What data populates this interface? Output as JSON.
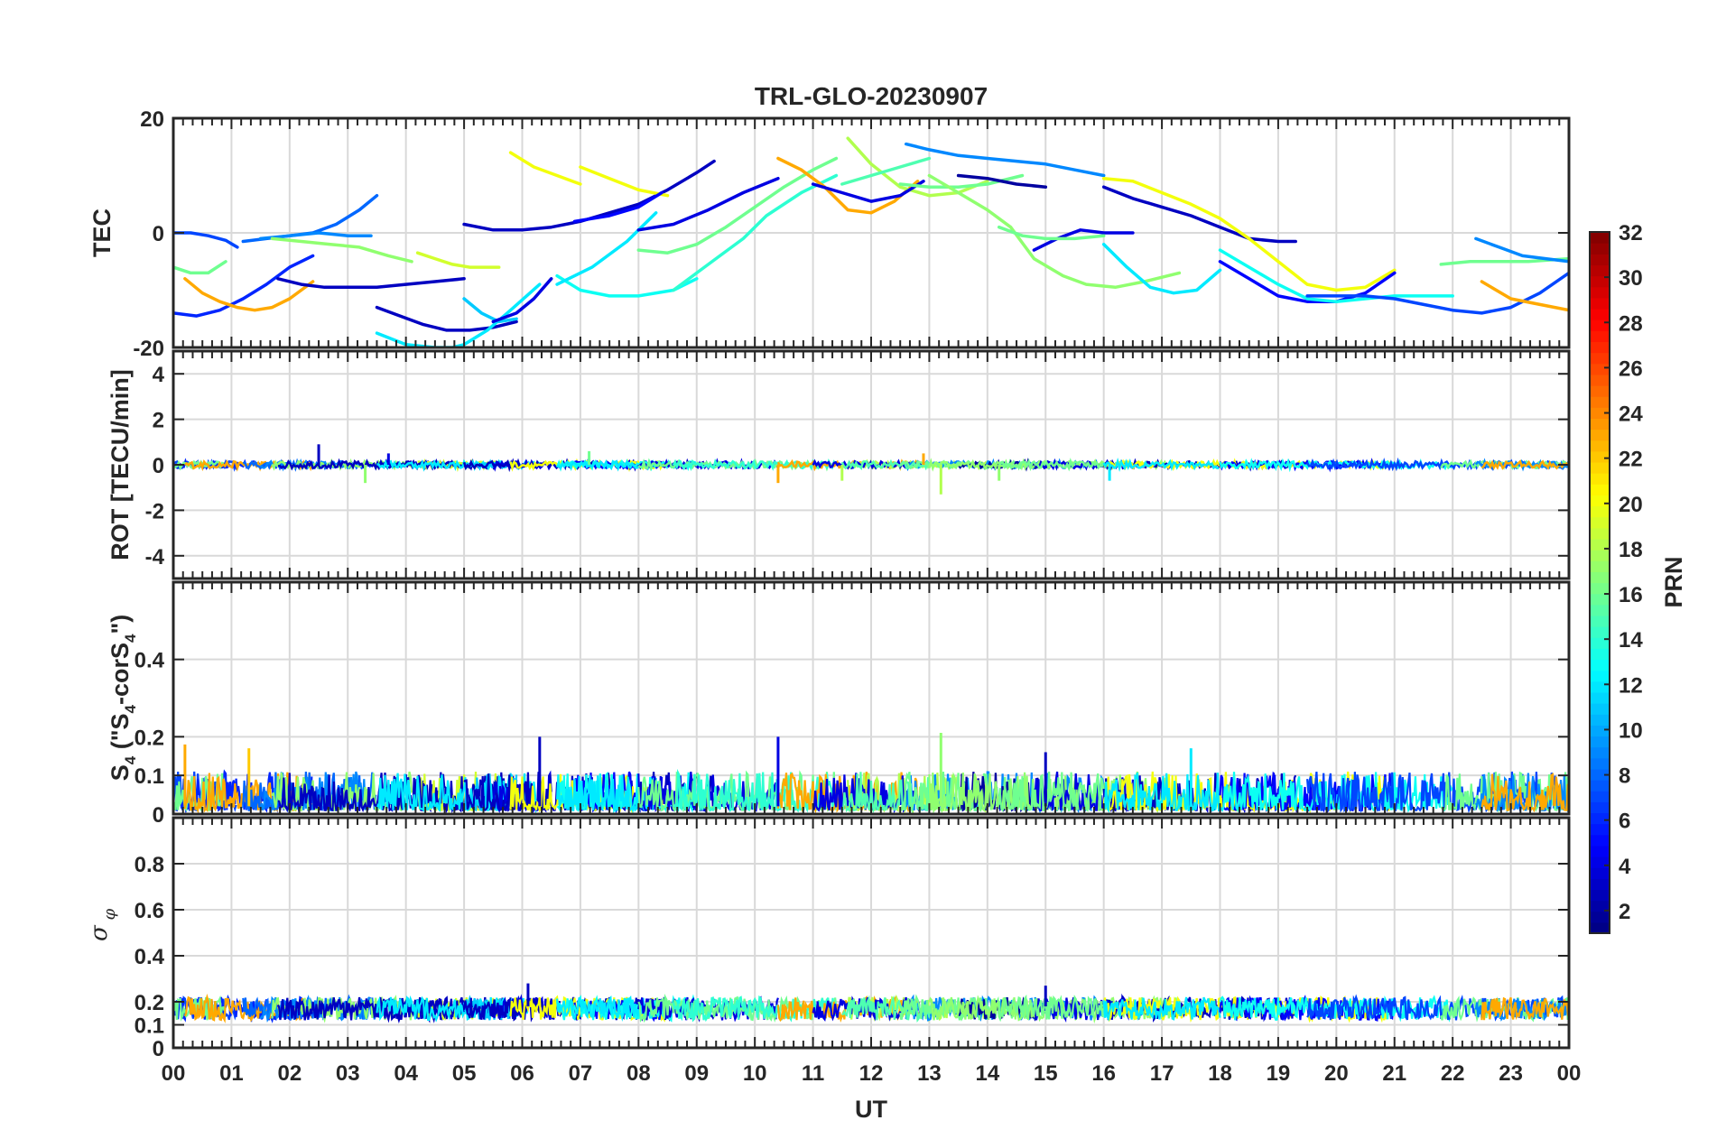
{
  "chart_data": [
    {
      "type": "line",
      "panel": "TEC",
      "title": "TRL-GLO-20230907",
      "ylabel": "TEC",
      "ylim": [
        -20,
        20
      ],
      "yticks": [
        20,
        0,
        -20
      ],
      "xlabel": "",
      "xlim": [
        0,
        24
      ],
      "grid": true,
      "color_by": "PRN",
      "series": [
        {
          "prn": 7,
          "x": [
            0.0,
            0.3,
            0.6,
            0.9,
            1.1
          ],
          "y": [
            0,
            0,
            -0.5,
            -1.3,
            -2.5
          ]
        },
        {
          "prn": 6,
          "x": [
            0.0,
            0.4,
            0.8,
            1.2,
            1.6,
            2.0,
            2.4
          ],
          "y": [
            -14,
            -14.5,
            -13.5,
            -11.5,
            -9,
            -6,
            -4
          ]
        },
        {
          "prn": 16,
          "x": [
            0.0,
            0.3,
            0.6,
            0.9
          ],
          "y": [
            -6,
            -7,
            -7,
            -5
          ]
        },
        {
          "prn": 23,
          "x": [
            0.2,
            0.5,
            0.8,
            1.1,
            1.4,
            1.7,
            2.0,
            2.4
          ],
          "y": [
            -8,
            -10.5,
            -12,
            -13,
            -13.5,
            -13,
            -11.5,
            -8.5
          ]
        },
        {
          "prn": 8,
          "x": [
            1.2,
            1.6,
            2.0,
            2.4,
            2.8,
            3.2,
            3.5
          ],
          "y": [
            -1.5,
            -1,
            -0.5,
            0,
            1.5,
            4,
            6.5
          ]
        },
        {
          "prn": 9,
          "x": [
            1.5,
            2.0,
            2.5,
            3.0,
            3.4
          ],
          "y": [
            -1,
            -0.5,
            0,
            -0.5,
            -0.5
          ]
        },
        {
          "prn": 17,
          "x": [
            1.7,
            2.2,
            2.7,
            3.2,
            3.7,
            4.1
          ],
          "y": [
            -1,
            -1.5,
            -2,
            -2.5,
            -4,
            -5
          ]
        },
        {
          "prn": 3,
          "x": [
            1.8,
            2.2,
            2.6,
            3.0,
            3.5,
            4.0,
            4.5,
            5.0
          ],
          "y": [
            -8,
            -9,
            -9.5,
            -9.5,
            -9.5,
            -9,
            -8.5,
            -8
          ]
        },
        {
          "prn": 19,
          "x": [
            4.2,
            4.5,
            4.8,
            5.1,
            5.6
          ],
          "y": [
            -3.5,
            -4.5,
            -5.5,
            -6,
            -6
          ]
        },
        {
          "prn": 3,
          "x": [
            3.5,
            3.9,
            4.3,
            4.7,
            5.1,
            5.5,
            5.9
          ],
          "y": [
            -13,
            -14.5,
            -16,
            -17,
            -17,
            -16.5,
            -15.5
          ]
        },
        {
          "prn": 12,
          "x": [
            3.5,
            4.0,
            4.5,
            4.8,
            5.0,
            5.4,
            5.8,
            6.3
          ],
          "y": [
            -17.5,
            -19.5,
            -20,
            -20,
            -19.5,
            -17,
            -13.5,
            -9
          ]
        },
        {
          "prn": 11,
          "x": [
            5.0,
            5.3,
            5.6,
            5.9
          ],
          "y": [
            -11.5,
            -14,
            -15.5,
            -15
          ]
        },
        {
          "prn": 4,
          "x": [
            5.5,
            5.9,
            6.2,
            6.5
          ],
          "y": [
            -15.5,
            -14,
            -11.5,
            -8
          ]
        },
        {
          "prn": 3,
          "x": [
            5.0,
            5.5,
            6.0,
            6.5,
            7.0,
            7.5,
            8.0,
            8.5,
            9.0,
            9.3
          ],
          "y": [
            1.5,
            0.5,
            0.5,
            1,
            2,
            3.5,
            5,
            7.5,
            10.5,
            12.5
          ]
        },
        {
          "prn": 20,
          "x": [
            5.8,
            6.2,
            6.6,
            7.0
          ],
          "y": [
            14,
            11.5,
            10,
            8.5
          ]
        },
        {
          "prn": 20,
          "x": [
            7.0,
            7.5,
            8.0,
            8.5
          ],
          "y": [
            11.5,
            9.5,
            7.5,
            6.5
          ]
        },
        {
          "prn": 5,
          "x": [
            6.9,
            7.5,
            8.0,
            8.4
          ],
          "y": [
            2,
            3,
            4.5,
            7
          ]
        },
        {
          "prn": 13,
          "x": [
            6.6,
            7.0,
            7.5,
            8.0,
            8.6,
            9.0
          ],
          "y": [
            -7.5,
            -10,
            -11,
            -11,
            -10,
            -8
          ]
        },
        {
          "prn": 12,
          "x": [
            6.6,
            7.2,
            7.8,
            8.3
          ],
          "y": [
            -9,
            -6,
            -1.5,
            3.5
          ]
        },
        {
          "prn": 4,
          "x": [
            8.0,
            8.6,
            9.2,
            9.8,
            10.4
          ],
          "y": [
            0.5,
            1.5,
            4,
            7,
            9.5
          ]
        },
        {
          "prn": 16,
          "x": [
            8.0,
            8.5,
            9.0,
            9.5,
            10.0,
            10.5,
            11.0,
            11.4
          ],
          "y": [
            -3,
            -3.5,
            -2,
            1,
            4.5,
            8,
            11,
            13
          ]
        },
        {
          "prn": 14,
          "x": [
            8.6,
            9.0,
            9.4,
            9.8,
            10.2,
            10.8,
            11.4
          ],
          "y": [
            -10,
            -7,
            -4,
            -1,
            3,
            7,
            10
          ]
        },
        {
          "prn": 23,
          "x": [
            10.4,
            10.8,
            11.2,
            11.6,
            12.0,
            12.4,
            12.8
          ],
          "y": [
            13,
            11,
            8,
            4,
            3.5,
            5.5,
            9
          ]
        },
        {
          "prn": 18,
          "x": [
            11.6,
            12.0,
            12.5,
            13.0,
            13.5,
            14.0
          ],
          "y": [
            16.5,
            12,
            8,
            6.5,
            7,
            9
          ]
        },
        {
          "prn": 4,
          "x": [
            11.0,
            11.5,
            12.0,
            12.5,
            12.9
          ],
          "y": [
            8.5,
            7,
            5.5,
            6.5,
            9
          ]
        },
        {
          "prn": 9,
          "x": [
            12.6,
            13.0,
            13.5,
            14.0,
            14.5,
            15.0,
            15.5,
            16.0
          ],
          "y": [
            15.5,
            14.5,
            13.5,
            13,
            12.5,
            12,
            11,
            10
          ]
        },
        {
          "prn": 15,
          "x": [
            11.5,
            12.0,
            12.5,
            13.0
          ],
          "y": [
            8.5,
            10,
            11.5,
            13
          ]
        },
        {
          "prn": 16,
          "x": [
            12.5,
            13.0,
            13.5,
            14.0,
            14.6
          ],
          "y": [
            8.5,
            8,
            8,
            8.5,
            10
          ]
        },
        {
          "prn": 2,
          "x": [
            13.5,
            14.0,
            14.5,
            15.0
          ],
          "y": [
            10,
            9.5,
            8.5,
            8
          ]
        },
        {
          "prn": 17,
          "x": [
            13.0,
            13.5,
            14.0,
            14.4,
            14.8,
            15.3,
            15.7,
            16.2,
            16.7,
            17.3
          ],
          "y": [
            10,
            7,
            4,
            1,
            -4.5,
            -7.5,
            -9,
            -9.5,
            -8.5,
            -7
          ]
        },
        {
          "prn": 4,
          "x": [
            14.8,
            15.2,
            15.6,
            16.0,
            16.5
          ],
          "y": [
            -3,
            -1,
            0.5,
            0,
            0
          ]
        },
        {
          "prn": 16,
          "x": [
            14.2,
            14.6,
            15.0,
            15.5,
            16.0
          ],
          "y": [
            1,
            -0.5,
            -1,
            -1,
            -0.5
          ]
        },
        {
          "prn": 3,
          "x": [
            16.0,
            16.5,
            17.0,
            17.5,
            18.0,
            18.5,
            19.0,
            19.3
          ],
          "y": [
            8,
            6,
            4.5,
            3,
            1,
            -1,
            -1.5,
            -1.5
          ]
        },
        {
          "prn": 20,
          "x": [
            16.0,
            16.5,
            17.0,
            17.5,
            18.0,
            18.5,
            19.0,
            19.5,
            20.0,
            20.5,
            21.0
          ],
          "y": [
            9.5,
            9,
            7,
            5,
            2.5,
            -1,
            -5,
            -9,
            -10,
            -9.5,
            -6.5
          ]
        },
        {
          "prn": 12,
          "x": [
            16.0,
            16.4,
            16.8,
            17.2,
            17.6,
            18.0
          ],
          "y": [
            -2,
            -6,
            -9.5,
            -10.5,
            -10,
            -6.5
          ]
        },
        {
          "prn": 5,
          "x": [
            18.0,
            18.5,
            19.0,
            19.5,
            20.0,
            20.5,
            21.0
          ],
          "y": [
            -5,
            -8,
            -11,
            -12,
            -12,
            -10.5,
            -7
          ]
        },
        {
          "prn": 13,
          "x": [
            18.0,
            18.5,
            19.0,
            19.5,
            20.0,
            20.5,
            21.0,
            21.5,
            22.0
          ],
          "y": [
            -3,
            -6,
            -9,
            -11.5,
            -12,
            -11.5,
            -11,
            -11,
            -11
          ]
        },
        {
          "prn": 7,
          "x": [
            19.5,
            20.0,
            20.5,
            21.0,
            21.5,
            22.0,
            22.5,
            23.0,
            23.5,
            24.0
          ],
          "y": [
            -11,
            -11,
            -11,
            -11.5,
            -12.5,
            -13.5,
            -14,
            -13,
            -10.5,
            -7
          ]
        },
        {
          "prn": 16,
          "x": [
            21.8,
            22.3,
            22.8,
            23.3,
            24.0
          ],
          "y": [
            -5.5,
            -5,
            -5,
            -5,
            -4.5
          ]
        },
        {
          "prn": 9,
          "x": [
            22.4,
            22.8,
            23.2,
            23.6,
            24.0
          ],
          "y": [
            -1,
            -2.5,
            -4,
            -4.5,
            -5
          ]
        },
        {
          "prn": 23,
          "x": [
            22.5,
            23.0,
            23.5,
            24.0
          ],
          "y": [
            -8.5,
            -11.5,
            -12.5,
            -13.5
          ]
        }
      ]
    },
    {
      "type": "line",
      "panel": "ROT",
      "ylabel": "ROT [TECU/min]",
      "ylim": [
        -5,
        5
      ],
      "yticks": [
        4,
        2,
        0,
        -2,
        -4
      ],
      "xlim": [
        0,
        24
      ],
      "grid": true,
      "color_by": "PRN",
      "baseline": 0,
      "typical_noise": 0.15,
      "spikes": [
        {
          "x": 2.5,
          "y": 0.9,
          "prn": 3
        },
        {
          "x": 3.3,
          "y": -0.8,
          "prn": 17
        },
        {
          "x": 3.7,
          "y": 0.5,
          "prn": 4
        },
        {
          "x": 7.15,
          "y": 0.6,
          "prn": 16
        },
        {
          "x": 10.4,
          "y": -0.8,
          "prn": 23
        },
        {
          "x": 11.5,
          "y": -0.7,
          "prn": 18
        },
        {
          "x": 12.9,
          "y": 0.5,
          "prn": 23
        },
        {
          "x": 13.2,
          "y": -1.3,
          "prn": 18
        },
        {
          "x": 14.2,
          "y": -0.7,
          "prn": 17
        },
        {
          "x": 16.1,
          "y": -0.7,
          "prn": 12
        }
      ]
    },
    {
      "type": "line",
      "panel": "S4",
      "ylabel": "S4 (\"S4-corS4\")",
      "ylim": [
        0,
        0.6
      ],
      "yticks": [
        0,
        0.1,
        0.2,
        0.4
      ],
      "xlim": [
        0,
        24
      ],
      "grid": true,
      "color_by": "PRN",
      "typical_range": [
        0,
        0.1
      ],
      "peaks": [
        {
          "x": 0.2,
          "y": 0.18,
          "prn": 23
        },
        {
          "x": 1.3,
          "y": 0.17,
          "prn": 22
        },
        {
          "x": 6.3,
          "y": 0.2,
          "prn": 3
        },
        {
          "x": 10.4,
          "y": 0.2,
          "prn": 4
        },
        {
          "x": 13.2,
          "y": 0.21,
          "prn": 17
        },
        {
          "x": 15.0,
          "y": 0.16,
          "prn": 3
        },
        {
          "x": 17.5,
          "y": 0.17,
          "prn": 12
        }
      ]
    },
    {
      "type": "line",
      "panel": "sigma_phi",
      "ylabel": "σ φ",
      "ylim": [
        0,
        1
      ],
      "yticks": [
        0,
        0.1,
        0.2,
        0.4,
        0.6,
        0.8
      ],
      "xlim": [
        0,
        24
      ],
      "xlabel": "UT",
      "xticklabels": [
        "00",
        "01",
        "02",
        "03",
        "04",
        "05",
        "06",
        "07",
        "08",
        "09",
        "10",
        "11",
        "12",
        "13",
        "14",
        "15",
        "16",
        "17",
        "18",
        "19",
        "20",
        "21",
        "22",
        "23",
        "00"
      ],
      "grid": true,
      "color_by": "PRN",
      "typical_range": [
        0.12,
        0.22
      ],
      "peaks": [
        {
          "x": 6.1,
          "y": 0.28,
          "prn": 3
        },
        {
          "x": 15.0,
          "y": 0.27,
          "prn": 3
        }
      ]
    }
  ],
  "colorbar": {
    "label": "PRN",
    "min": 1,
    "max": 32,
    "ticks": [
      "2",
      "4",
      "6",
      "8",
      "10",
      "12",
      "14",
      "16",
      "18",
      "20",
      "22",
      "24",
      "26",
      "28",
      "30",
      "32"
    ],
    "colormap": "jet"
  }
}
